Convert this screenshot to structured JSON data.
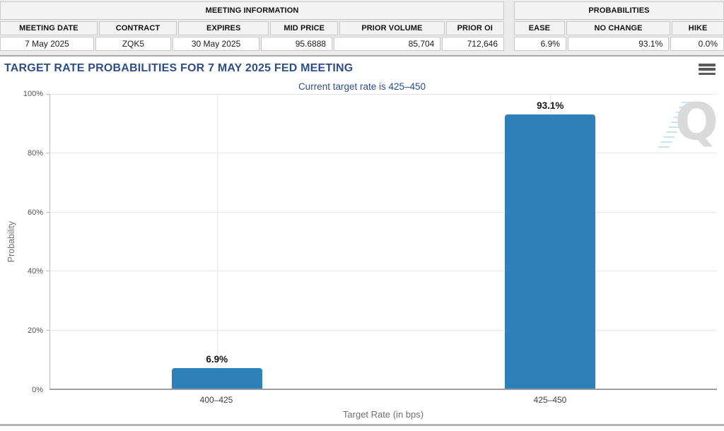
{
  "meeting_info": {
    "title": "MEETING INFORMATION",
    "columns": [
      "MEETING DATE",
      "CONTRACT",
      "EXPIRES",
      "MID PRICE",
      "PRIOR VOLUME",
      "PRIOR OI"
    ],
    "values": [
      "7 May 2025",
      "ZQK5",
      "30 May 2025",
      "95.6888",
      "85,704",
      "712,646"
    ]
  },
  "probabilities": {
    "title": "PROBABILITIES",
    "columns": [
      "EASE",
      "NO CHANGE",
      "HIKE"
    ],
    "values": [
      "6.9%",
      "93.1%",
      "0.0%"
    ]
  },
  "chart": {
    "title": "TARGET RATE PROBABILITIES FOR 7 MAY 2025 FED MEETING",
    "subtitle": "Current target rate is 425–450",
    "menu_icon": "hamburger-menu-icon",
    "watermark_letter": "Q",
    "title_color": "#2f4e87"
  },
  "chart_data": {
    "type": "bar",
    "categories": [
      "400–425",
      "425–450"
    ],
    "values": [
      6.9,
      93.1
    ],
    "labels": [
      "6.9%",
      "93.1%"
    ],
    "title": "TARGET RATE PROBABILITIES FOR 7 MAY 2025 FED MEETING",
    "subtitle": "Current target rate is 425–450",
    "xlabel": "Target Rate (in bps)",
    "ylabel": "Probability",
    "ylim": [
      0,
      100
    ],
    "yticks": [
      "0%",
      "20%",
      "40%",
      "60%",
      "80%",
      "100%"
    ],
    "bar_color": "#2e80b8",
    "grid": true,
    "legend": false
  }
}
